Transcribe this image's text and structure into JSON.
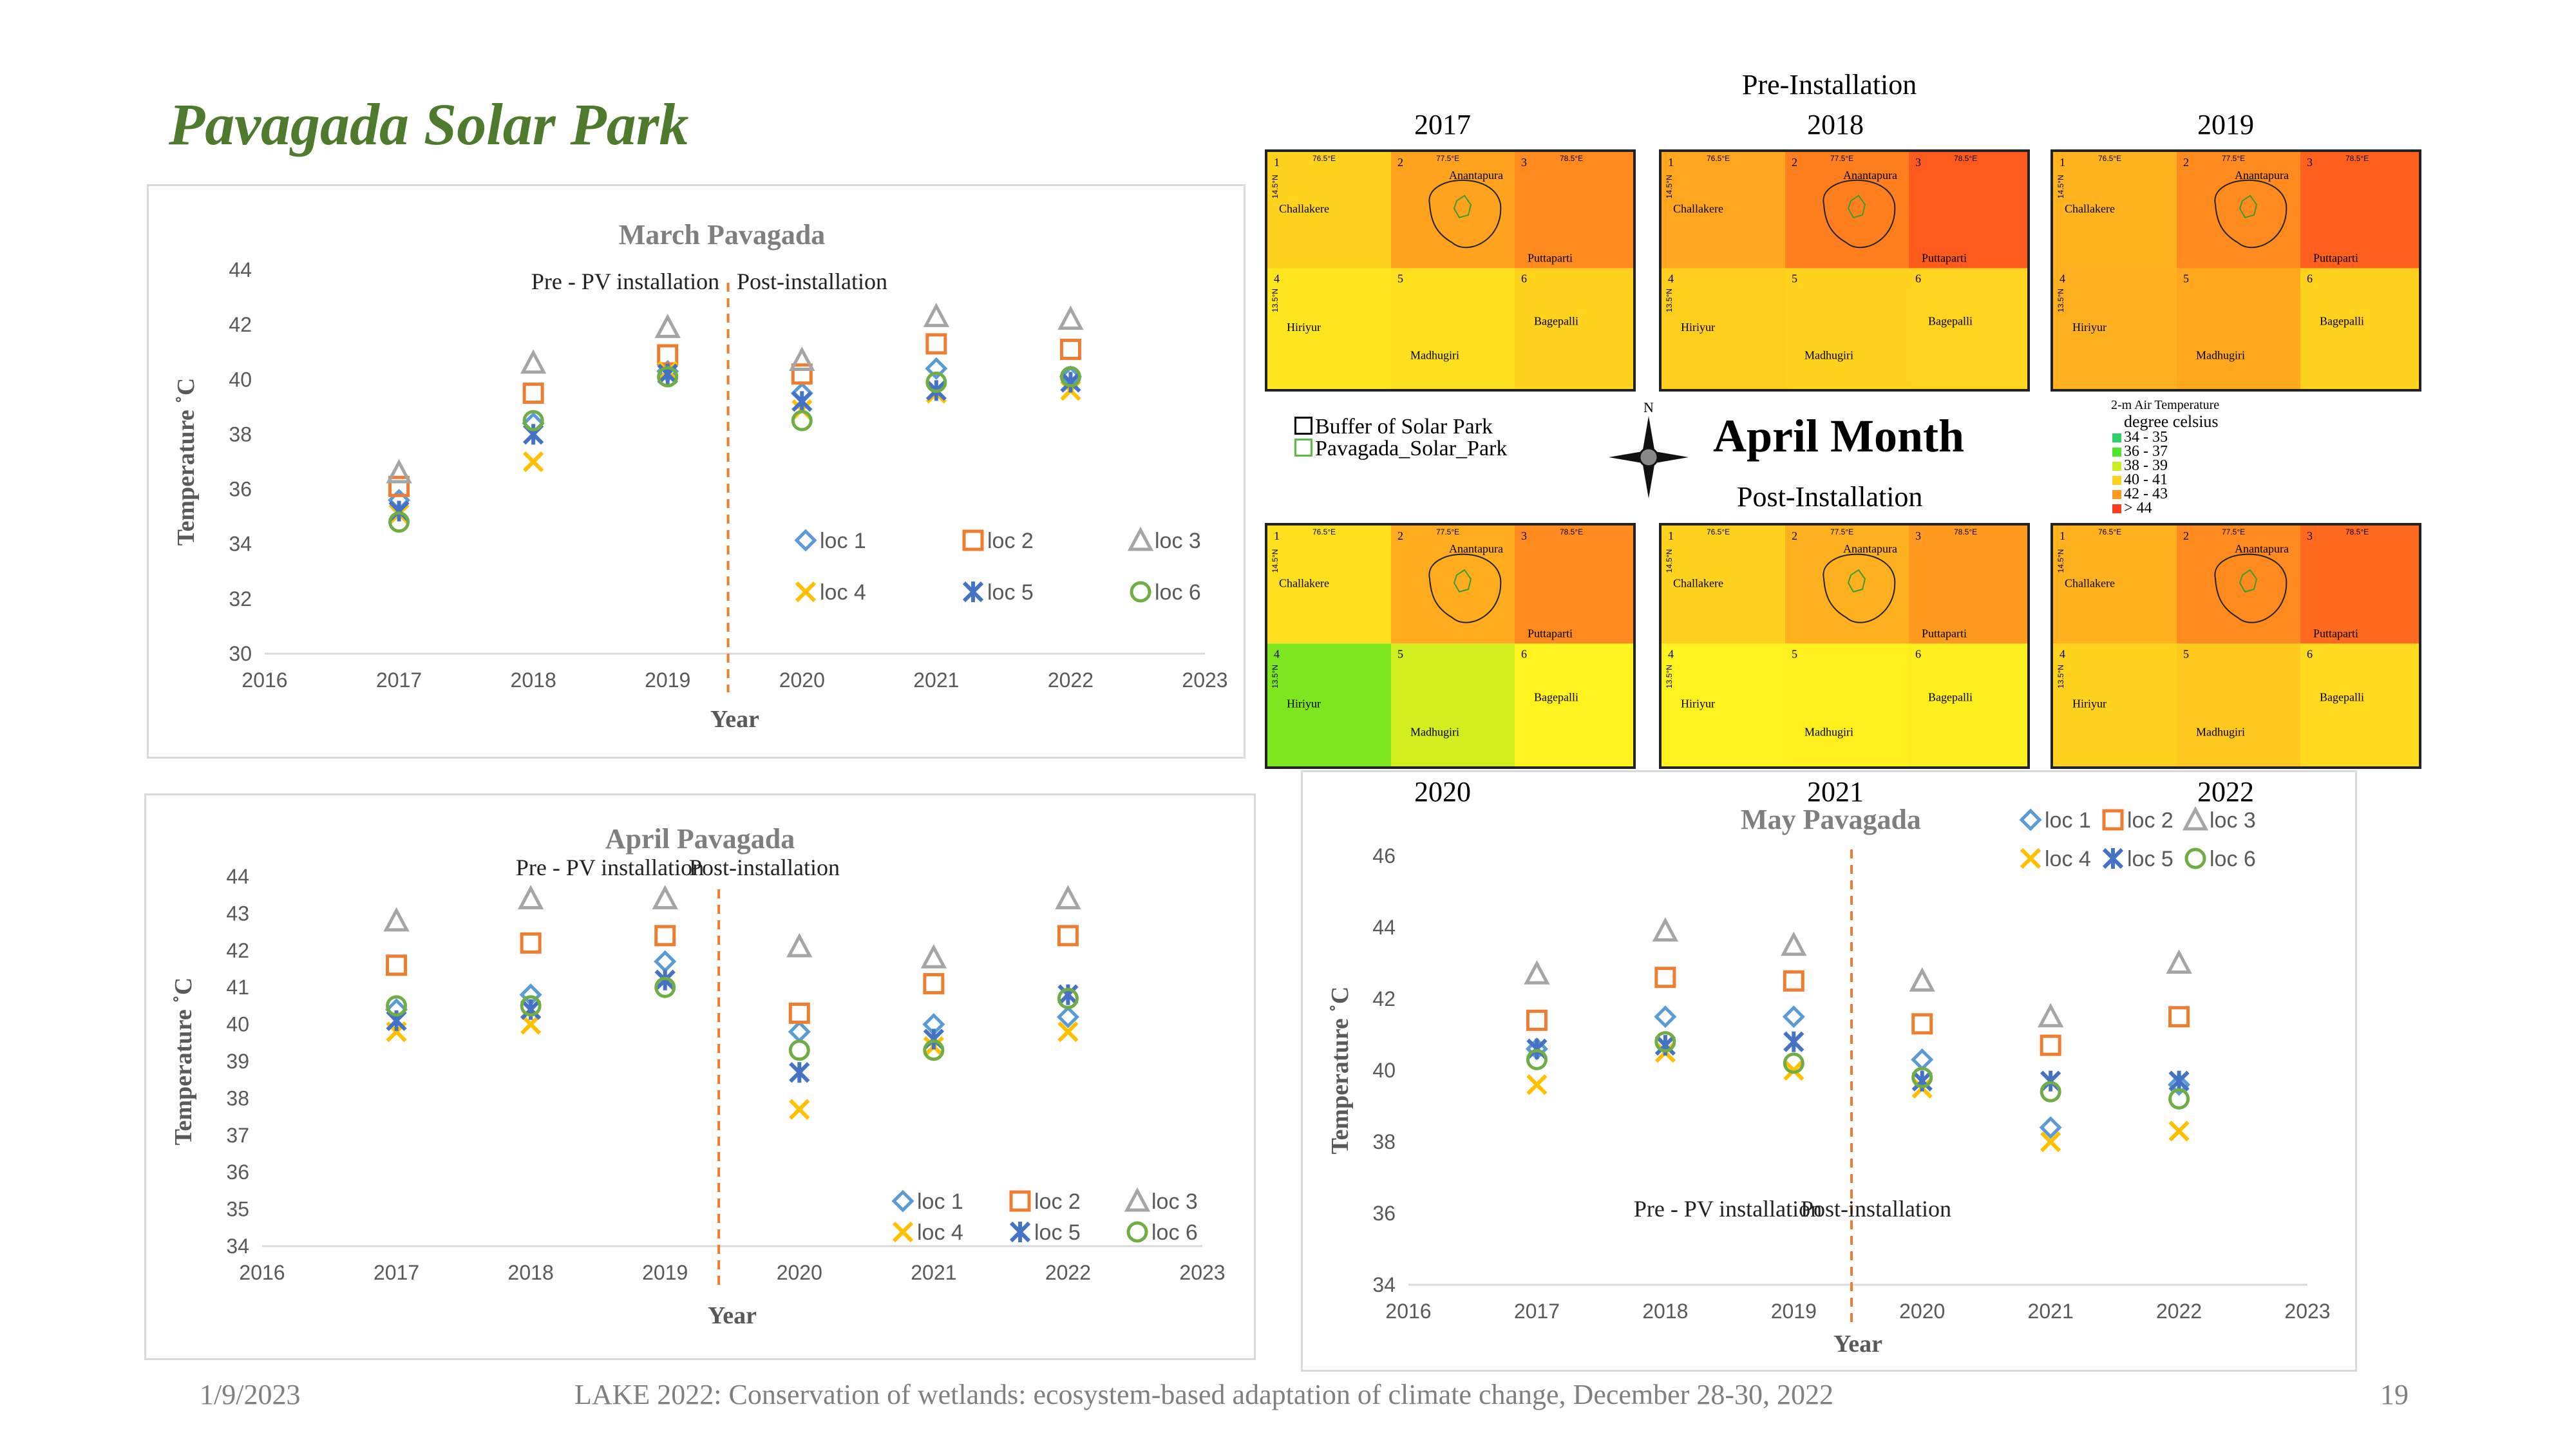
{
  "slide": {
    "title": "Pavagada Solar Park"
  },
  "footer": {
    "date": "1/9/2023",
    "conference": "LAKE 2022: Conservation of wetlands: ecosystem-based adaptation of climate change, December 28-30, 2022",
    "page_number": "19"
  },
  "maps": {
    "pre_label": "Pre-Installation",
    "post_label": "Post-Installation",
    "month_title": "April Month",
    "compass_letter": "N",
    "legend_left": [
      "Buffer of Solar Park",
      "Pavagada_Solar_Park"
    ],
    "legend_title_1": "2-m Air Temperature",
    "legend_title_2": "degree celsius",
    "legend_ranges": [
      {
        "label": "34 - 35",
        "color": "#2fd06a"
      },
      {
        "label": "36 - 37",
        "color": "#4fe62a"
      },
      {
        "label": "38 - 39",
        "color": "#c8ee20"
      },
      {
        "label": "40 - 41",
        "color": "#ffd21e"
      },
      {
        "label": "42 - 43",
        "color": "#ff9a1e"
      },
      {
        "label": "> 44",
        "color": "#ff3b1e"
      }
    ],
    "place_names": {
      "anantapura": "Anantapura",
      "challakere": "Challakere",
      "puttaparti": "Puttaparti",
      "hiriyur": "Hiriyur",
      "madhugiri": "Madhugiri",
      "bagepalli": "Bagepalli"
    },
    "cell_numbers": [
      "1",
      "2",
      "3",
      "4",
      "5",
      "6"
    ],
    "lon_ticks": [
      "76.5°E",
      "77.5°E",
      "78.5°E"
    ],
    "lat_ticks": [
      "14.5°N",
      "13.5°N"
    ],
    "panels": [
      {
        "year": "2017",
        "cells": [
          "#ffd21e",
          "#ffa21e",
          "#ff8a1e",
          "#ffe61e",
          "#ffe01e",
          "#ffd21e"
        ]
      },
      {
        "year": "2018",
        "cells": [
          "#ffa51e",
          "#ff7e1e",
          "#ff5a1e",
          "#ffcf1e",
          "#ffd21e",
          "#ffd41e"
        ]
      },
      {
        "year": "2019",
        "cells": [
          "#ffb31e",
          "#ff8a1e",
          "#ff601e",
          "#ffb01e",
          "#ffa81e",
          "#ffd21e"
        ]
      },
      {
        "year": "2020",
        "cells": [
          "#ffe01e",
          "#ffac1e",
          "#ff8a1e",
          "#7ee61e",
          "#d2ee1e",
          "#fff21e"
        ]
      },
      {
        "year": "2021",
        "cells": [
          "#ffd21e",
          "#ffb01e",
          "#ff9a1e",
          "#fff21e",
          "#fff01e",
          "#ffee1e"
        ]
      },
      {
        "year": "2022",
        "cells": [
          "#ffb21e",
          "#ff8a1e",
          "#ff6a1e",
          "#ffd21e",
          "#ffc81e",
          "#ffda1e"
        ]
      }
    ]
  },
  "chart_data": [
    {
      "type": "scatter",
      "title": "March Pavagada",
      "xlabel": "Year",
      "ylabel": "Temperature ˚C",
      "xlim": [
        2016,
        2023
      ],
      "ylim": [
        30,
        44
      ],
      "xticks": [
        "2016",
        "2017",
        "2018",
        "2019",
        "2020",
        "2021",
        "2022",
        "2023"
      ],
      "yticks": [
        "30",
        "32",
        "34",
        "36",
        "38",
        "40",
        "42",
        "44"
      ],
      "divider_x": 2019.45,
      "annotations": {
        "pre": "Pre - PV installation",
        "post": "Post-installation"
      },
      "x": [
        2017,
        2018,
        2019,
        2020,
        2021,
        2022
      ],
      "series": [
        {
          "name": "loc 1",
          "marker": "diamond",
          "color": "#5b9bd5",
          "values": [
            35.6,
            38.4,
            40.3,
            39.5,
            40.4,
            40.1
          ]
        },
        {
          "name": "loc 2",
          "marker": "square",
          "color": "#ed7d31",
          "values": [
            36.1,
            39.5,
            40.9,
            40.2,
            41.3,
            41.1
          ]
        },
        {
          "name": "loc 3",
          "marker": "triangle",
          "color": "#a5a5a5",
          "values": [
            36.6,
            40.6,
            41.9,
            40.7,
            42.3,
            42.2
          ]
        },
        {
          "name": "loc 4",
          "marker": "x",
          "color": "#ffc000",
          "values": [
            35.1,
            37.0,
            40.3,
            38.9,
            39.5,
            39.6
          ]
        },
        {
          "name": "loc 5",
          "marker": "star",
          "color": "#4472c4",
          "values": [
            35.2,
            38.0,
            40.2,
            39.2,
            39.6,
            39.9
          ]
        },
        {
          "name": "loc 6",
          "marker": "circle",
          "color": "#70ad47",
          "values": [
            34.8,
            38.5,
            40.1,
            38.5,
            39.9,
            40.1
          ]
        }
      ]
    },
    {
      "type": "scatter",
      "title": "April Pavagada",
      "xlabel": "Year",
      "ylabel": "Temperature ˚C",
      "xlim": [
        2016,
        2023
      ],
      "ylim": [
        34,
        44
      ],
      "xticks": [
        "2016",
        "2017",
        "2018",
        "2019",
        "2020",
        "2021",
        "2022",
        "2023"
      ],
      "yticks": [
        "34",
        "35",
        "36",
        "37",
        "38",
        "39",
        "40",
        "41",
        "42",
        "43",
        "44"
      ],
      "divider_x": 2019.4,
      "annotations": {
        "pre": "Pre - PV installation",
        "post": "Post-installation"
      },
      "x": [
        2017,
        2018,
        2019,
        2020,
        2021,
        2022
      ],
      "series": [
        {
          "name": "loc 1",
          "marker": "diamond",
          "color": "#5b9bd5",
          "values": [
            40.4,
            40.8,
            41.7,
            39.8,
            40.0,
            40.2
          ]
        },
        {
          "name": "loc 2",
          "marker": "square",
          "color": "#ed7d31",
          "values": [
            41.6,
            42.2,
            42.4,
            40.3,
            41.1,
            42.4
          ]
        },
        {
          "name": "loc 3",
          "marker": "triangle",
          "color": "#a5a5a5",
          "values": [
            42.8,
            43.4,
            43.4,
            42.1,
            41.8,
            43.4
          ]
        },
        {
          "name": "loc 4",
          "marker": "x",
          "color": "#ffc000",
          "values": [
            39.8,
            40.0,
            41.2,
            37.7,
            39.4,
            39.8
          ]
        },
        {
          "name": "loc 5",
          "marker": "star",
          "color": "#4472c4",
          "values": [
            40.1,
            40.4,
            41.2,
            38.7,
            39.6,
            40.8
          ]
        },
        {
          "name": "loc 6",
          "marker": "circle",
          "color": "#70ad47",
          "values": [
            40.5,
            40.5,
            41.0,
            39.3,
            39.3,
            40.7
          ]
        }
      ]
    },
    {
      "type": "scatter",
      "title": "May Pavagada",
      "xlabel": "Year",
      "ylabel": "Temperature ˚C",
      "xlim": [
        2016,
        2023
      ],
      "ylim": [
        34,
        46
      ],
      "xticks": [
        "2016",
        "2017",
        "2018",
        "2019",
        "2020",
        "2021",
        "2022",
        "2023"
      ],
      "yticks": [
        "34",
        "36",
        "38",
        "40",
        "42",
        "44",
        "46"
      ],
      "divider_x": 2019.45,
      "annotations": {
        "pre": "Pre - PV installation",
        "post": "Post-installation"
      },
      "x": [
        2017,
        2018,
        2019,
        2020,
        2021,
        2022
      ],
      "series": [
        {
          "name": "loc 1",
          "marker": "diamond",
          "color": "#5b9bd5",
          "values": [
            40.6,
            41.5,
            41.5,
            40.3,
            38.4,
            39.6
          ]
        },
        {
          "name": "loc 2",
          "marker": "square",
          "color": "#ed7d31",
          "values": [
            41.4,
            42.6,
            42.5,
            41.3,
            40.7,
            41.5
          ]
        },
        {
          "name": "loc 3",
          "marker": "triangle",
          "color": "#a5a5a5",
          "values": [
            42.7,
            43.9,
            43.5,
            42.5,
            41.5,
            43.0
          ]
        },
        {
          "name": "loc 4",
          "marker": "x",
          "color": "#ffc000",
          "values": [
            39.6,
            40.5,
            40.0,
            39.5,
            38.0,
            38.3
          ]
        },
        {
          "name": "loc 5",
          "marker": "star",
          "color": "#4472c4",
          "values": [
            40.6,
            40.7,
            40.8,
            39.7,
            39.7,
            39.7
          ]
        },
        {
          "name": "loc 6",
          "marker": "circle",
          "color": "#70ad47",
          "values": [
            40.3,
            40.8,
            40.2,
            39.8,
            39.4,
            39.2
          ]
        }
      ]
    }
  ]
}
